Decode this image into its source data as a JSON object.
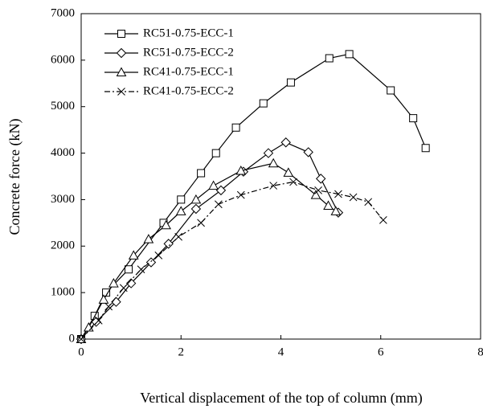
{
  "chart_data": {
    "type": "line",
    "x_label": "Vertical displacement of the top of column (mm)",
    "y_label": "Concrete  force (kN)",
    "xlim": [
      0,
      8
    ],
    "xticks": [
      0,
      2,
      4,
      6,
      8
    ],
    "ylim": [
      0,
      7000
    ],
    "yticks": [
      0,
      1000,
      2000,
      3000,
      4000,
      5000,
      6000,
      7000
    ],
    "grid": false,
    "legend": "upper left",
    "series": [
      {
        "name": "RC51-0.75-ECC-1",
        "color": "#000000",
        "marker": "square",
        "dash": "solid",
        "x": [
          0,
          0.27,
          0.5,
          0.95,
          1.65,
          2.0,
          2.4,
          2.7,
          3.1,
          3.65,
          4.2,
          4.97,
          5.37,
          6.2,
          6.65,
          6.9
        ],
        "values": [
          0,
          500,
          1000,
          1500,
          2500,
          3000,
          3570,
          4000,
          4550,
          5070,
          5520,
          6040,
          6130,
          5350,
          4750,
          4110
        ]
      },
      {
        "name": "RC51-0.75-ECC-2",
        "color": "#000000",
        "marker": "diamond",
        "dash": "solid",
        "x": [
          0,
          0.3,
          0.7,
          1.0,
          1.4,
          1.75,
          2.3,
          2.8,
          3.25,
          3.75,
          4.1,
          4.55,
          4.8,
          5.15
        ],
        "values": [
          0,
          370,
          800,
          1200,
          1650,
          2050,
          2800,
          3200,
          3600,
          4000,
          4230,
          4020,
          3450,
          2720
        ]
      },
      {
        "name": "RC41-0.75-ECC-1",
        "color": "#000000",
        "marker": "triangle",
        "dash": "solid",
        "x": [
          0,
          0.15,
          0.45,
          0.65,
          1.05,
          1.35,
          1.7,
          2.0,
          2.3,
          2.65,
          3.2,
          3.85,
          4.15,
          4.7,
          4.95,
          5.1
        ],
        "values": [
          0,
          250,
          850,
          1200,
          1800,
          2150,
          2450,
          2750,
          3000,
          3300,
          3620,
          3780,
          3580,
          3100,
          2870,
          2750
        ]
      },
      {
        "name": "RC41-0.75-ECC-2",
        "color": "#000000",
        "marker": "cross",
        "dash": "dashdot",
        "x": [
          0,
          0.35,
          0.55,
          0.85,
          1.2,
          1.55,
          1.95,
          2.4,
          2.75,
          3.2,
          3.85,
          4.25,
          4.75,
          5.15,
          5.45,
          5.75,
          6.05
        ],
        "values": [
          0,
          400,
          700,
          1100,
          1500,
          1800,
          2200,
          2500,
          2900,
          3100,
          3300,
          3380,
          3200,
          3120,
          3050,
          2950,
          2560
        ]
      }
    ]
  }
}
